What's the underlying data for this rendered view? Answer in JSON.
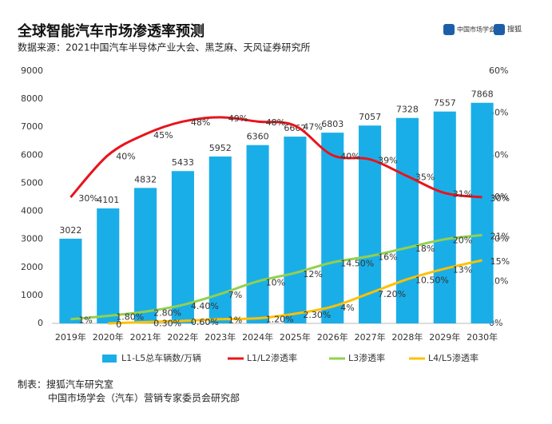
{
  "chart_data": {
    "type": "bar",
    "title": "全球智能汽车市场渗透率预测",
    "subtitle": "数据来源：2021中国汽车半导体产业大会、黑芝麻、天风证券研究所",
    "logos": [
      "中国市场学会",
      "搜狐"
    ],
    "footer": [
      "制表：搜狐汽车研究室",
      "中国市场学会（汽车）营销专家委员会研究部"
    ],
    "categories": [
      "2019年",
      "2020年",
      "2021年",
      "2022年",
      "2023年",
      "2024年",
      "2025年",
      "2026年",
      "2027年",
      "2028年",
      "2029年",
      "2030年"
    ],
    "series": [
      {
        "name": "L1-L5总车辆数/万辆",
        "type": "bar",
        "color": "#1aaee8",
        "values": [
          3022,
          4101,
          4832,
          5433,
          5952,
          6360,
          6662,
          6803,
          7057,
          7328,
          7557,
          7868
        ]
      },
      {
        "name": "L1/L2渗透率",
        "type": "line",
        "axis": "y2",
        "color": "#e8141b",
        "values": [
          30,
          40,
          45,
          48,
          49,
          48,
          47,
          40,
          39,
          35,
          31,
          30
        ],
        "value_labels": [
          "30%",
          "40%",
          "45%",
          "48%",
          "49%",
          "48%",
          "47%",
          "40%",
          "39%",
          "35%",
          "31%",
          "30%"
        ]
      },
      {
        "name": "L3渗透率",
        "type": "line",
        "axis": "y2",
        "color": "#92d050",
        "values": [
          1,
          1.8,
          2.8,
          4.4,
          7,
          10,
          12,
          14.5,
          16,
          18,
          20,
          21
        ],
        "value_labels": [
          "1%",
          "1.80%",
          "2.80%",
          "4.40%",
          "7%",
          "10%",
          "12%",
          "14.50%",
          "16%",
          "18%",
          "20%",
          "21%"
        ]
      },
      {
        "name": "L4/L5渗透率",
        "type": "line",
        "axis": "y2",
        "color": "#ffc000",
        "values": [
          null,
          0,
          0.3,
          0.6,
          1,
          1.2,
          2.3,
          4,
          7.2,
          10.5,
          13,
          15
        ],
        "value_labels": [
          null,
          "0",
          "0.30%",
          "0.60%",
          "1%",
          "1.20%",
          "2.30%",
          "4%",
          "7.20%",
          "10.50%",
          "13%",
          "15%"
        ]
      }
    ],
    "ylim": [
      0,
      9000
    ],
    "yticks": [
      0,
      1000,
      2000,
      3000,
      4000,
      5000,
      6000,
      7000,
      8000,
      9000
    ],
    "y2lim": [
      0,
      60
    ],
    "y2ticks": [
      {
        "value": 0,
        "label": "0%"
      },
      {
        "value": 10,
        "label": "10%"
      },
      {
        "value": 20,
        "label": "20%"
      },
      {
        "value": 30,
        "label": "30%"
      },
      {
        "value": 40,
        "label": "40%"
      },
      {
        "value": 50,
        "label": "50%"
      },
      {
        "value": 60,
        "label": "60%"
      }
    ],
    "legend": "bottom",
    "grid": false
  }
}
